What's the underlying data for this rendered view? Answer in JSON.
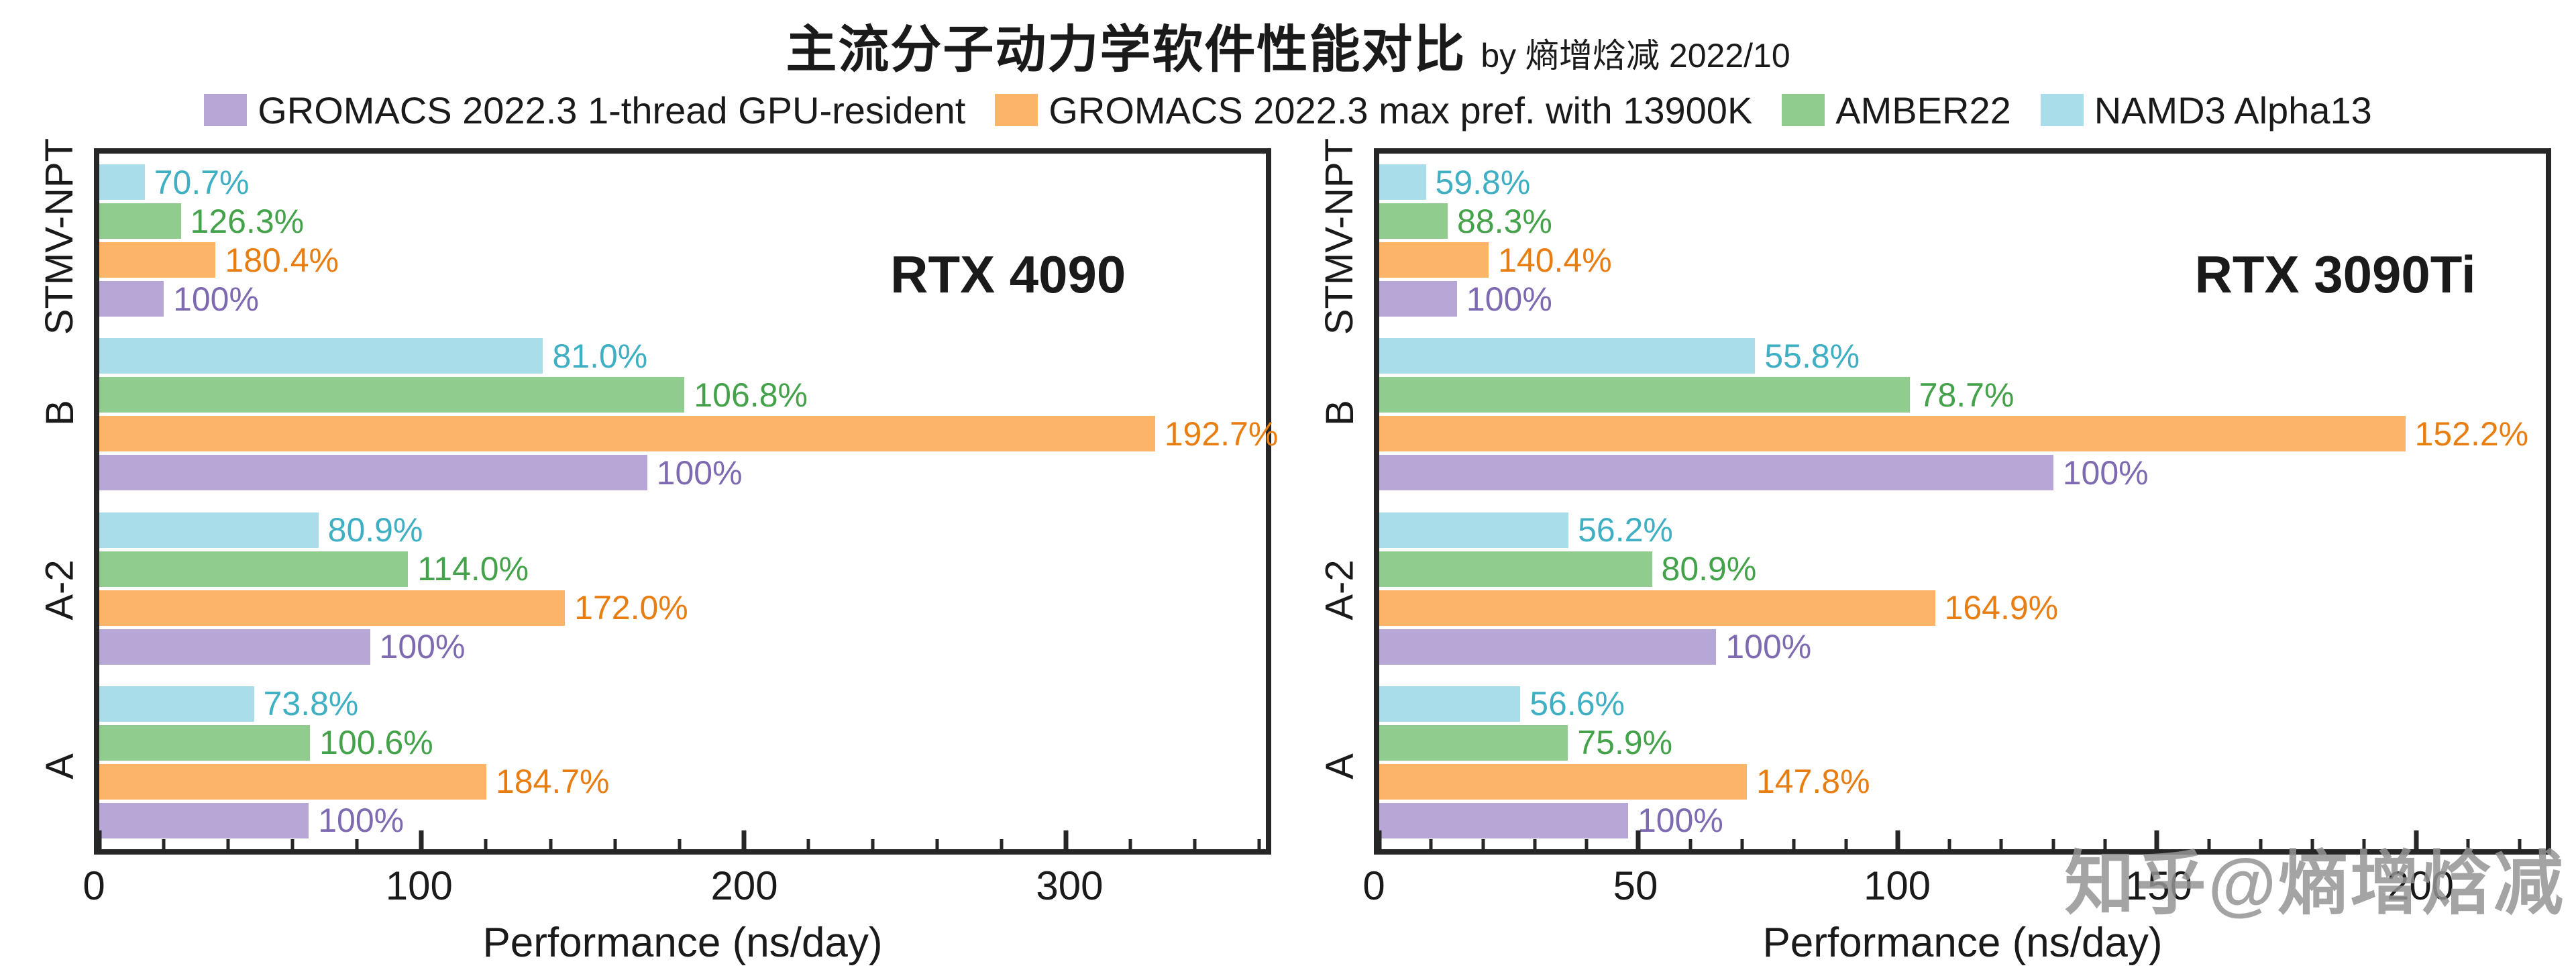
{
  "header": {
    "title": "主流分子动力学软件性能对比",
    "subtitle": "by 熵增焓减 2022/10"
  },
  "watermark": {
    "text": "知乎@熵增焓减"
  },
  "colors": {
    "spine": "#262626",
    "background": "#ffffff"
  },
  "chart_data": [
    {
      "type": "bar",
      "orientation": "horizontal",
      "title": "RTX 4090",
      "xlabel": "Performance (ns/day)",
      "xlim": [
        0,
        362
      ],
      "xticks": [
        0,
        100,
        200,
        300
      ],
      "minor_tick_step": 20,
      "grid": false,
      "categories": [
        "STMV-NPT",
        "B",
        "A-2",
        "A"
      ],
      "series": [
        {
          "key": "gromacs-gpu-resident",
          "name": "GROMACS 2022.3 1-thread GPU-resident",
          "color": "#b7a7d6",
          "label_color": "#7d6ab0",
          "values_ns_day": [
            20,
            170,
            84,
            65
          ],
          "labels": [
            "100%",
            "100%",
            "100%",
            "100%"
          ]
        },
        {
          "key": "gromacs-13900k",
          "name": "GROMACS 2022.3 max pref. with 13900K",
          "color": "#fbb468",
          "label_color": "#e87d12",
          "values_ns_day": [
            36.1,
            327.6,
            144.5,
            120.1
          ],
          "labels": [
            "180.4%",
            "192.7%",
            "172.0%",
            "184.7%"
          ]
        },
        {
          "key": "amber22",
          "name": "AMBER22",
          "color": "#90cc8d",
          "label_color": "#44a34a",
          "values_ns_day": [
            25.3,
            181.6,
            95.8,
            65.4
          ],
          "labels": [
            "126.3%",
            "106.8%",
            "114.0%",
            "100.6%"
          ]
        },
        {
          "key": "namd3",
          "name": "NAMD3 Alpha13",
          "color": "#a9dde9",
          "label_color": "#3fafc3",
          "values_ns_day": [
            14.1,
            137.7,
            68.0,
            48.0
          ],
          "labels": [
            "70.7%",
            "81.0%",
            "80.9%",
            "73.8%"
          ]
        }
      ]
    },
    {
      "type": "bar",
      "orientation": "horizontal",
      "title": "RTX 3090Ti",
      "xlabel": "Performance (ns/day)",
      "xlim": [
        0,
        225
      ],
      "xticks": [
        0,
        50,
        100,
        150,
        200
      ],
      "minor_tick_step": 10,
      "grid": false,
      "categories": [
        "STMV-NPT",
        "B",
        "A-2",
        "A"
      ],
      "series": [
        {
          "key": "gromacs-gpu-resident",
          "name": "GROMACS 2022.3 1-thread GPU-resident",
          "color": "#b7a7d6",
          "label_color": "#7d6ab0",
          "values_ns_day": [
            15,
            130,
            65,
            48
          ],
          "labels": [
            "100%",
            "100%",
            "100%",
            "100%"
          ]
        },
        {
          "key": "gromacs-13900k",
          "name": "GROMACS 2022.3 max pref. with 13900K",
          "color": "#fbb468",
          "label_color": "#e87d12",
          "values_ns_day": [
            21.1,
            197.9,
            107.2,
            70.9
          ],
          "labels": [
            "140.4%",
            "152.2%",
            "164.9%",
            "147.8%"
          ]
        },
        {
          "key": "amber22",
          "name": "AMBER22",
          "color": "#90cc8d",
          "label_color": "#44a34a",
          "values_ns_day": [
            13.2,
            102.3,
            52.6,
            36.4
          ],
          "labels": [
            "88.3%",
            "78.7%",
            "80.9%",
            "75.9%"
          ]
        },
        {
          "key": "namd3",
          "name": "NAMD3 Alpha13",
          "color": "#a9dde9",
          "label_color": "#3fafc3",
          "values_ns_day": [
            9.0,
            72.5,
            36.5,
            27.2
          ],
          "labels": [
            "59.8%",
            "55.8%",
            "56.2%",
            "56.6%"
          ]
        }
      ]
    }
  ]
}
